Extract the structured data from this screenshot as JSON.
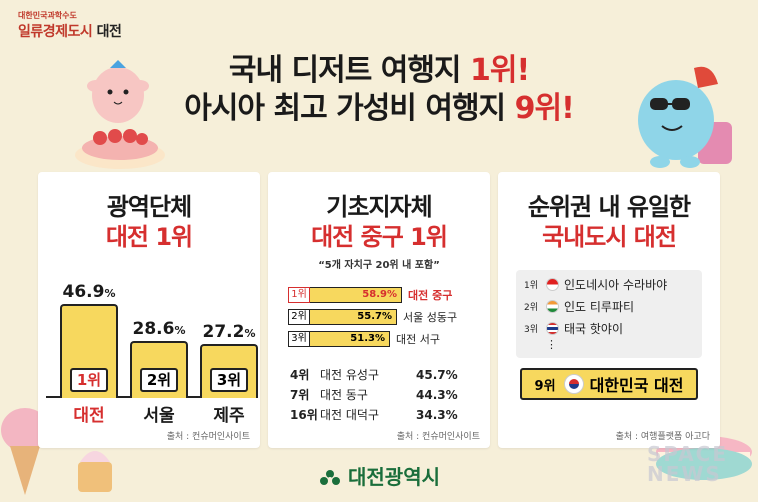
{
  "header": {
    "small": "대한민국과학수도",
    "brand_red": "일류경제도시",
    "brand_city": "대전"
  },
  "headline": {
    "line1_prefix": "국내 디저트 여행지 ",
    "line1_highlight": "1위!",
    "line2_prefix": "아시아 최고 가성비 여행지 ",
    "line2_highlight": "9위!"
  },
  "card1": {
    "title": "광역단체",
    "subtitle": "대전 1위",
    "source": "출처 : 컨슈머인사이트",
    "chart_data": {
      "type": "bar",
      "categories": [
        "대전",
        "서울",
        "제주"
      ],
      "values": [
        46.9,
        28.6,
        27.2
      ],
      "value_labels": [
        "46.9",
        "28.6",
        "27.2"
      ],
      "unit": "%",
      "ranks": [
        "1위",
        "2위",
        "3위"
      ],
      "ylim": [
        0,
        50
      ]
    }
  },
  "card2": {
    "title": "기초지자체",
    "subtitle": "대전 중구 1위",
    "note": "“5개 자치구 20위 내 포함”",
    "source": "출처 : 컨슈머인사이트",
    "top": [
      {
        "rank": "1위",
        "value": "58.9%",
        "name": "대전 중구",
        "v": 58.9
      },
      {
        "rank": "2위",
        "value": "55.7%",
        "name": "서울 성동구",
        "v": 55.7
      },
      {
        "rank": "3위",
        "value": "51.3%",
        "name": "대전 서구",
        "v": 51.3
      }
    ],
    "others": [
      {
        "rank": "4위",
        "name": "대전 유성구",
        "value": "45.7%"
      },
      {
        "rank": "7위",
        "name": "대전 동구",
        "value": "44.3%"
      },
      {
        "rank": "16위",
        "name": "대전 대덕구",
        "value": "34.3%"
      }
    ]
  },
  "card3": {
    "title": "순위권 내 유일한",
    "subtitle": "국내도시 대전",
    "source": "출처 : 여행플랫폼 아고다",
    "list": [
      {
        "rank": "1위",
        "name": "인도네시아 수라바야",
        "flag": "indonesia-flag"
      },
      {
        "rank": "2위",
        "name": "인도 티루파티",
        "flag": "india-flag"
      },
      {
        "rank": "3위",
        "name": "태국 핫야이",
        "flag": "thailand-flag"
      }
    ],
    "dots": "⋮",
    "final": {
      "rank": "9위",
      "name": "대한민국 대전",
      "flag": "korea-flag"
    }
  },
  "footer": {
    "org": "대전광역시"
  },
  "watermark": {
    "line1": "SPACE",
    "line2": "NEWS"
  },
  "colors": {
    "accent_red": "#d62f2f",
    "bar_yellow": "#f7d85e",
    "background": "#f6efd9",
    "footer_green": "#1a6e3b"
  }
}
